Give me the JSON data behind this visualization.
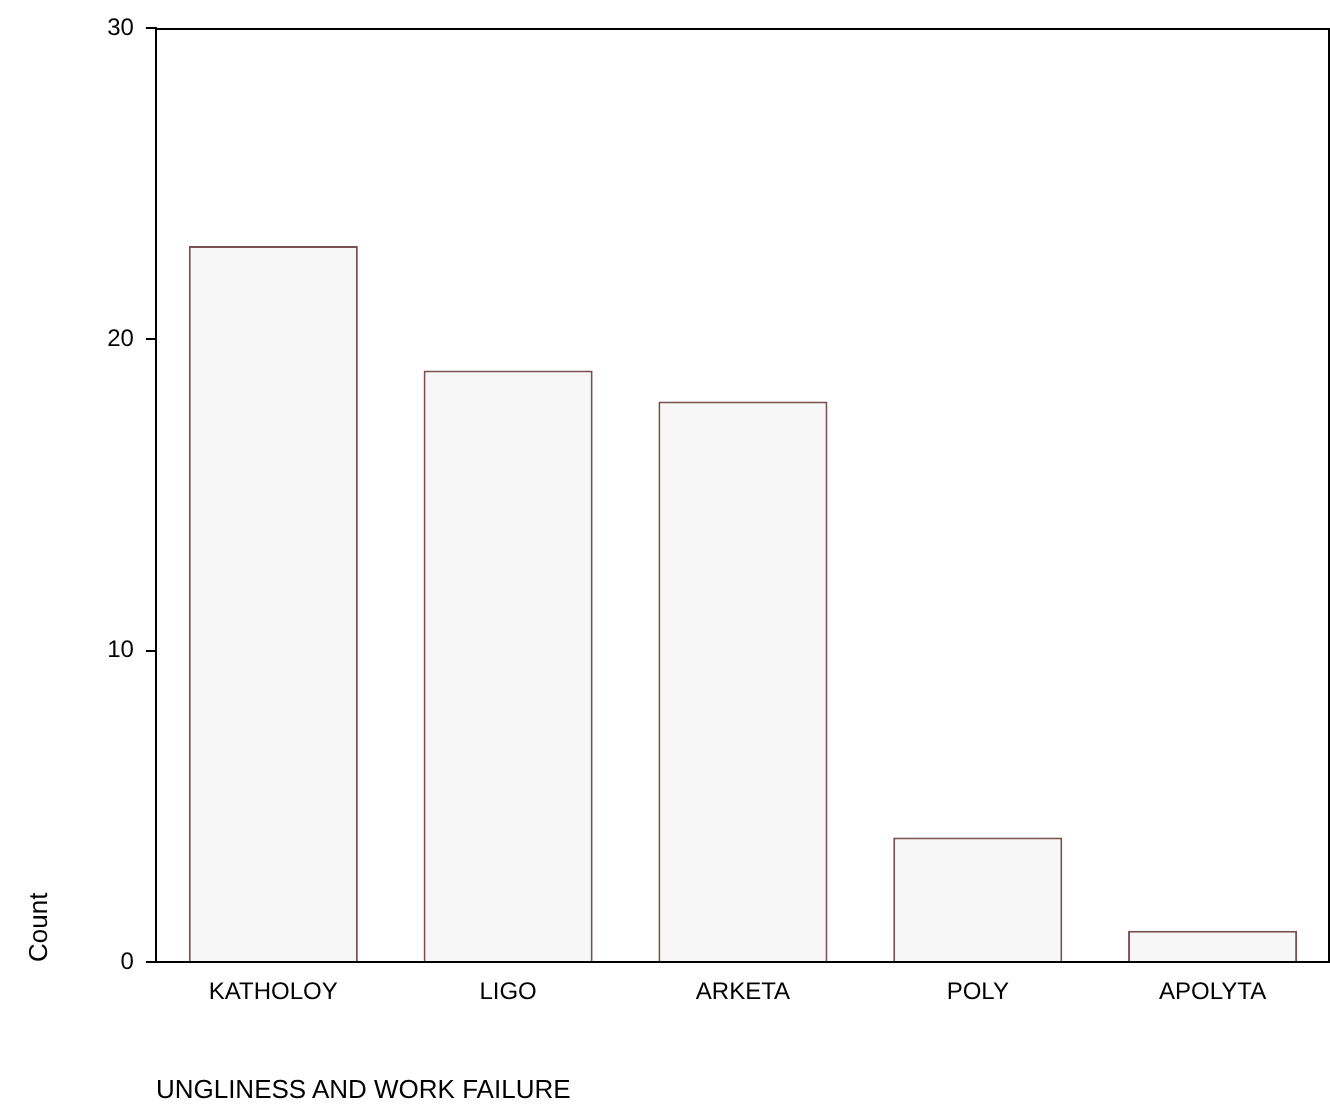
{
  "chart_data": {
    "type": "bar",
    "xlabel": "UNGLINESS AND WORK FAILURE",
    "ylabel": "Count",
    "categories": [
      "KATHOLOY",
      "LIGO",
      "ARKETA",
      "POLY",
      "APOLYTA"
    ],
    "values": [
      23,
      19,
      18,
      4,
      1
    ],
    "color": "#f7f7f7",
    "ylim": [
      0,
      30
    ],
    "yticks": [
      0,
      10,
      20,
      30
    ],
    "grid": false,
    "legend": false
  }
}
